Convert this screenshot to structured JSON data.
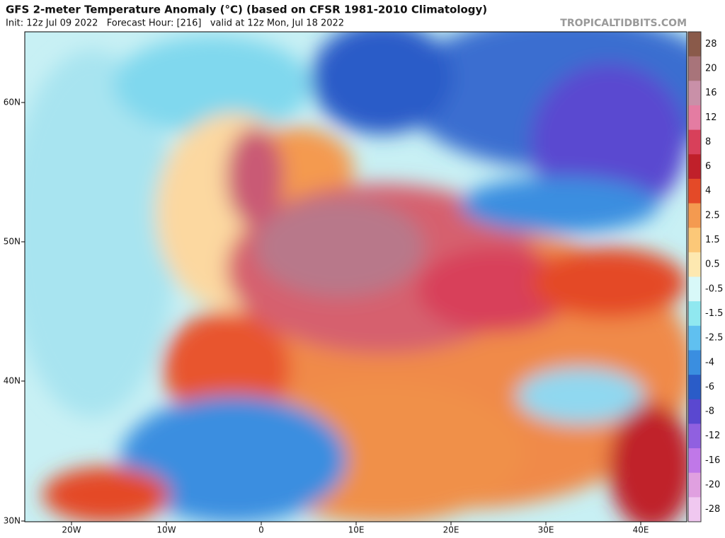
{
  "header": {
    "title": "GFS 2-meter Temperature Anomaly (°C) (based on CFSR 1981-2010 Climatology)",
    "subtitle": "Init: 12z Jul 09 2022   Forecast Hour: [216]   valid at 12z Mon, Jul 18 2022",
    "site": "TROPICALTIDBITS.COM"
  },
  "map": {
    "lat_labels": [
      "60N",
      "50N",
      "40N",
      "30N"
    ],
    "lon_labels": [
      "20W",
      "10W",
      "0",
      "10E",
      "20E",
      "30E",
      "40E"
    ]
  },
  "colorbar": {
    "levels": [
      {
        "label": "28",
        "color": "#8a5a4a"
      },
      {
        "label": "20",
        "color": "#a8747a"
      },
      {
        "label": "16",
        "color": "#c990a8"
      },
      {
        "label": "12",
        "color": "#e47ca2"
      },
      {
        "label": "8",
        "color": "#d8405a"
      },
      {
        "label": "6",
        "color": "#c0202a"
      },
      {
        "label": "4",
        "color": "#e44a28"
      },
      {
        "label": "2.5",
        "color": "#f49a50"
      },
      {
        "label": "1.5",
        "color": "#fcc878"
      },
      {
        "label": "0.5",
        "color": "#fde8b0"
      },
      {
        "label": "-0.5",
        "color": "#d8f8f8"
      },
      {
        "label": "-1.5",
        "color": "#90e8f0"
      },
      {
        "label": "-2.5",
        "color": "#60c0f0"
      },
      {
        "label": "-4",
        "color": "#3a8ee0"
      },
      {
        "label": "-6",
        "color": "#2a5cc8"
      },
      {
        "label": "-8",
        "color": "#5a48d0"
      },
      {
        "label": "-12",
        "color": "#9060e0"
      },
      {
        "label": "-16",
        "color": "#c078e8"
      },
      {
        "label": "-20",
        "color": "#e0a0e0"
      },
      {
        "label": "-28",
        "color": "#f0c8f0"
      }
    ]
  }
}
